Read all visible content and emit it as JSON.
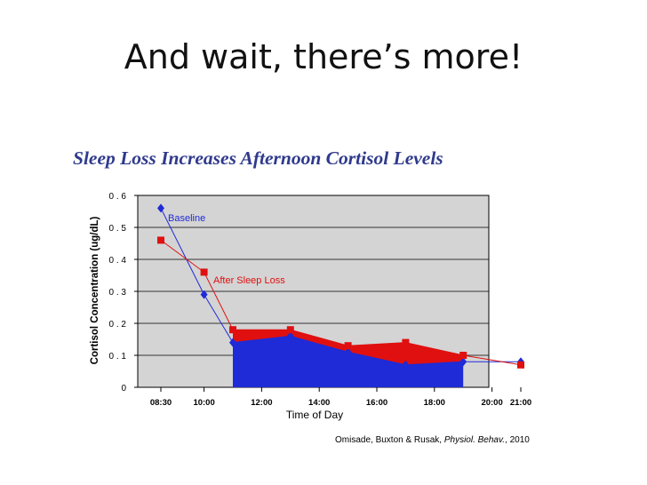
{
  "slide": {
    "title": "And wait, there’s more!"
  },
  "citation": {
    "authors": "Omisade, Buxton & Rusak,",
    "journal": "Physiol. Behav.",
    "year": ", 2010"
  },
  "chart_data": {
    "type": "line",
    "title": "Sleep Loss Increases Afternoon Cortisol Levels",
    "xlabel": "Time of Day",
    "ylabel": "Cortisol Concentration (ug/dL)",
    "ylim": [
      0,
      0.6
    ],
    "yticks": [
      "0",
      "0 . 1",
      "0 . 2",
      "0 . 3",
      "0 . 4",
      "0 . 5",
      "0 . 6"
    ],
    "ytick_values": [
      0,
      0.1,
      0.2,
      0.3,
      0.4,
      0.5,
      0.6
    ],
    "x_tick_labels": [
      "08:30",
      "10:00",
      "12:00",
      "14:00",
      "16:00",
      "18:00",
      "20:00",
      "21:00"
    ],
    "grid": true,
    "background": "#d4d4d4",
    "series": [
      {
        "name": "Baseline",
        "color": "#1f2bd6",
        "marker": "diamond",
        "x": [
          "08:30",
          "10:00",
          "11:00",
          "13:00",
          "15:00",
          "17:00",
          "19:00",
          "21:00"
        ],
        "values": [
          0.56,
          0.29,
          0.14,
          0.16,
          0.11,
          0.07,
          0.08,
          0.08
        ]
      },
      {
        "name": "After Sleep Loss",
        "color": "#e01010",
        "marker": "square",
        "x": [
          "08:30",
          "10:00",
          "11:00",
          "13:00",
          "15:00",
          "17:00",
          "19:00",
          "21:00"
        ],
        "values": [
          0.46,
          0.36,
          0.18,
          0.18,
          0.13,
          0.14,
          0.1,
          0.07
        ]
      }
    ],
    "shaded_region": {
      "from": "11:00",
      "to": "19:00",
      "upper_series": "After Sleep Loss",
      "lower_series": "Baseline"
    },
    "annotations": [
      {
        "text": "Baseline",
        "series": "Baseline",
        "color": "#1f2bd6"
      },
      {
        "text": "After Sleep Loss",
        "series": "After Sleep Loss",
        "color": "#e01010"
      }
    ]
  }
}
